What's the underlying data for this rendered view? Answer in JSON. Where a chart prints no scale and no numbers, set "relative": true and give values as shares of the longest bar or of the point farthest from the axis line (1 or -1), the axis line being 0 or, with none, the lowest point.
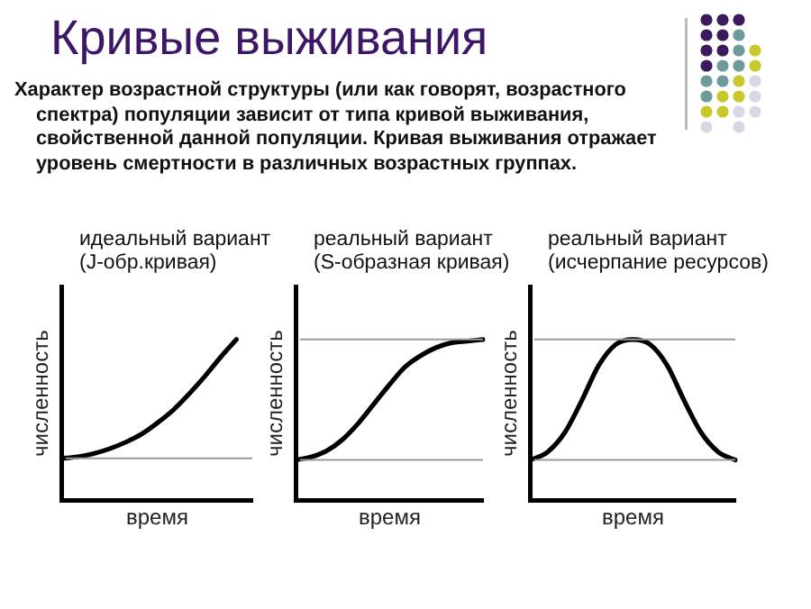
{
  "chart_data": [
    {
      "type": "other",
      "title": "Кривые выживания",
      "annotations": [
        "Характер возрастной структуры (или как говорят, возрастного спектра) популяции зависит от типа кривой выживания, свойственной данной популяции. Кривая выживания отражает уровень смертности в различных возрастных группах."
      ]
    },
    {
      "type": "line",
      "relative": true,
      "title": "идеальный вариант\n(J-обр.кривая)",
      "xlabel": "время",
      "ylabel": "численность",
      "categories": [
        null,
        null,
        null,
        null,
        null,
        null,
        null,
        null,
        null,
        null,
        null,
        null,
        null
      ],
      "series": [
        {
          "color": "#000000",
          "values": [
            0.26,
            0.27,
            0.29,
            0.32,
            0.36,
            0.41,
            0.48,
            0.56,
            0.66,
            0.77,
            0.89,
            1.0,
            null
          ]
        }
      ],
      "ref_lines": [
        {
          "axis": "y",
          "value": 0.26,
          "color": "#999999"
        }
      ],
      "marker": "none",
      "grid": false,
      "legend": false,
      "tick_labels": false
    },
    {
      "type": "line",
      "relative": true,
      "title": "реальный вариант\n(S-образная кривая)",
      "xlabel": "время",
      "ylabel": "численность",
      "categories": [
        null,
        null,
        null,
        null,
        null,
        null,
        null,
        null,
        null,
        null,
        null,
        null,
        null
      ],
      "series": [
        {
          "color": "#000000",
          "values": [
            0.25,
            0.27,
            0.31,
            0.38,
            0.48,
            0.6,
            0.72,
            0.83,
            0.9,
            0.95,
            0.98,
            0.99,
            1.0
          ]
        }
      ],
      "ref_lines": [
        {
          "axis": "y",
          "value": 0.25,
          "color": "#999999"
        },
        {
          "axis": "y",
          "value": 1.0,
          "color": "#999999"
        }
      ],
      "marker": "none",
      "grid": false,
      "legend": false,
      "tick_labels": false
    },
    {
      "type": "line",
      "relative": true,
      "title": "реальный вариант\n(исчерпание ресурсов)",
      "xlabel": "время",
      "ylabel": "численность",
      "categories": [
        null,
        null,
        null,
        null,
        null,
        null,
        null,
        null,
        null,
        null,
        null,
        null,
        null
      ],
      "series": [
        {
          "color": "#000000",
          "values": [
            0.25,
            0.3,
            0.42,
            0.62,
            0.84,
            0.97,
            1.0,
            0.97,
            0.84,
            0.62,
            0.42,
            0.3,
            0.25
          ]
        }
      ],
      "ref_lines": [
        {
          "axis": "y",
          "value": 0.25,
          "color": "#999999"
        },
        {
          "axis": "y",
          "value": 1.0,
          "color": "#999999"
        }
      ],
      "marker": "none",
      "grid": false,
      "legend": false,
      "tick_labels": false
    }
  ]
}
